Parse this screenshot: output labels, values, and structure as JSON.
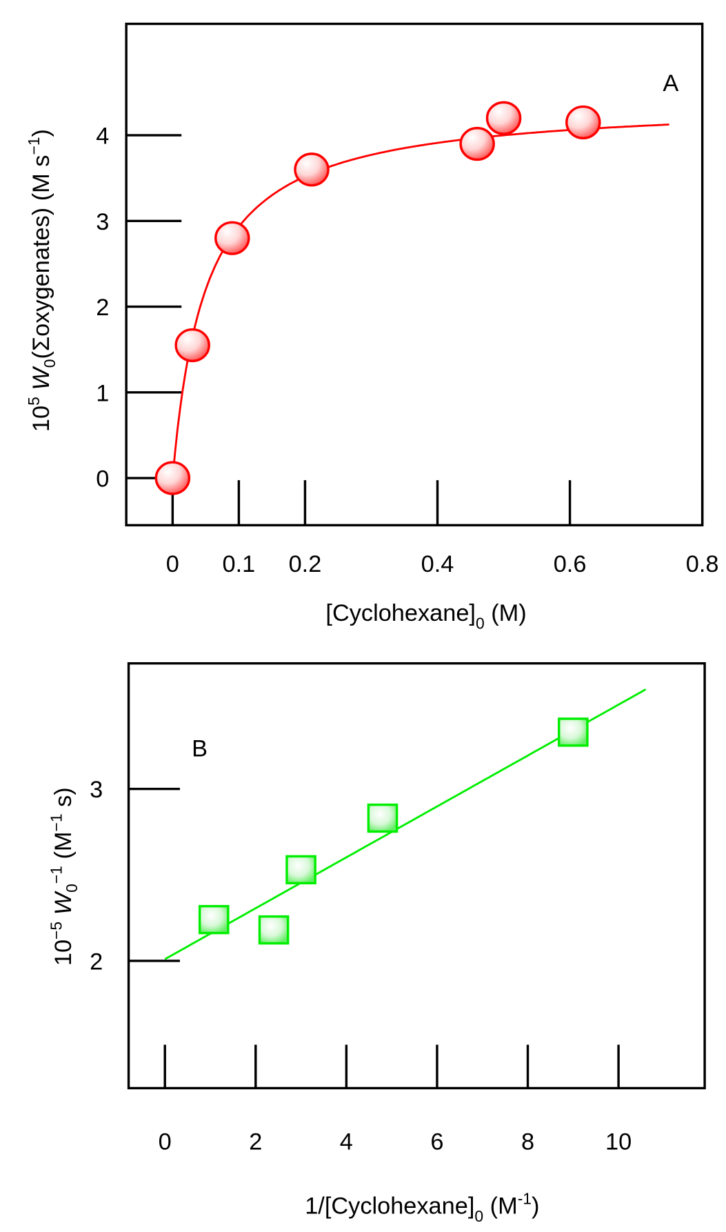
{
  "chart_data": [
    {
      "type": "scatter",
      "panel_label": "A",
      "xlabel": {
        "main": "[Cyclohexane]",
        "sub": "0",
        "unit": " (M)"
      },
      "ylabel": {
        "pre": "10",
        "sup": "5",
        "var": " W",
        "sub": "0",
        "mid": "(Σoxygenates) (M s",
        "sup2": "−1",
        "end": ")"
      },
      "x_ticks": [
        0,
        0.1,
        0.2,
        0.4,
        0.6,
        0.8
      ],
      "x_tick_labels": [
        "0",
        "0.1",
        "0.2",
        "0.4",
        "0.6",
        "0.8"
      ],
      "y_ticks": [
        0,
        1,
        2,
        3,
        4
      ],
      "y_tick_labels": [
        "0",
        "1",
        "2",
        "3",
        "4"
      ],
      "xlim": [
        -0.07,
        0.8
      ],
      "ylim": [
        -0.55,
        5.3
      ],
      "points": [
        {
          "x": 0,
          "y": 0
        },
        {
          "x": 0.03,
          "y": 1.55
        },
        {
          "x": 0.09,
          "y": 2.8
        },
        {
          "x": 0.21,
          "y": 3.6
        },
        {
          "x": 0.46,
          "y": 3.9
        },
        {
          "x": 0.5,
          "y": 4.2
        },
        {
          "x": 0.62,
          "y": 4.15
        }
      ],
      "fit": {
        "type": "saturation",
        "vmax": 4.4,
        "k": 0.05,
        "x_range": [
          0,
          0.75
        ]
      },
      "color": "#ff0000"
    },
    {
      "type": "scatter",
      "panel_label": "B",
      "xlabel": {
        "main": "1/[Cyclohexane]",
        "sub": "0",
        "unit": " (M",
        "sup": "-1",
        "end": ")"
      },
      "ylabel": {
        "pre": "10",
        "sup": "−5",
        "var": " W",
        "sub": "0",
        "sup2": "−1",
        "end": "  (M",
        "sup3": "−1",
        "end2": " s)"
      },
      "x_ticks": [
        0,
        2,
        4,
        6,
        8,
        10
      ],
      "x_tick_labels": [
        "0",
        "2",
        "4",
        "6",
        "8",
        "10"
      ],
      "y_ticks": [
        2,
        3
      ],
      "y_tick_labels": [
        "2",
        "3"
      ],
      "xlim": [
        -0.8,
        11.9
      ],
      "ylim": [
        1.26,
        3.73
      ],
      "points": [
        {
          "x": 1.08,
          "y": 2.24
        },
        {
          "x": 2.4,
          "y": 2.18
        },
        {
          "x": 3.0,
          "y": 2.53
        },
        {
          "x": 4.8,
          "y": 2.83
        },
        {
          "x": 9.0,
          "y": 3.33
        }
      ],
      "fit": {
        "type": "linear",
        "intercept": 2.01,
        "slope": 0.148,
        "x_range": [
          0,
          10.6
        ]
      },
      "color": "#00ee00"
    }
  ]
}
